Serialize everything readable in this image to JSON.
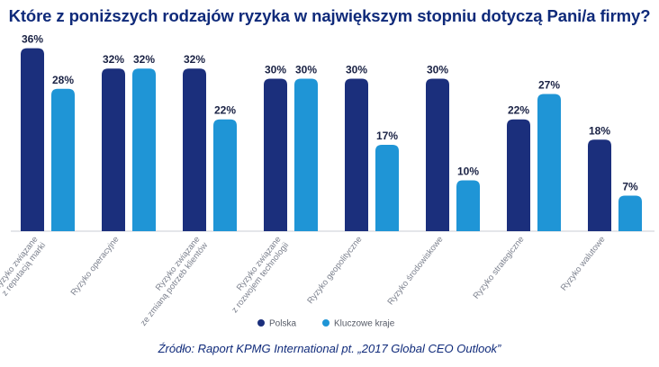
{
  "chart_data": {
    "type": "bar",
    "title": "Które z poniższych rodzajów ryzyka w największym stopniu dotyczą Pani/a firmy?",
    "categories": [
      [
        "Ryzyko związane",
        "z reputacją marki"
      ],
      [
        "Ryzyko operacyjne"
      ],
      [
        "Ryzyko związane",
        "ze zmianą potrzeb klientów"
      ],
      [
        "Ryzyko związane",
        "z rozwojem technologii"
      ],
      [
        "Ryzyko geopolityczne"
      ],
      [
        "Ryzyko środowiskowe"
      ],
      [
        "Ryzyko strategiczne"
      ],
      [
        "Ryzyko walutowe"
      ]
    ],
    "series": [
      {
        "name": "Polska",
        "color": "#1b2f7c",
        "values": [
          36,
          32,
          32,
          30,
          30,
          30,
          22,
          18
        ]
      },
      {
        "name": "Kluczowe kraje",
        "color": "#1f95d6",
        "values": [
          28,
          32,
          22,
          30,
          17,
          10,
          27,
          7
        ]
      }
    ],
    "value_suffix": "%",
    "ylim": [
      0,
      40
    ],
    "grid": false,
    "legend": "bottom-center"
  },
  "source": "Źródło: Raport KPMG International pt. „2017 Global CEO Outlook”"
}
